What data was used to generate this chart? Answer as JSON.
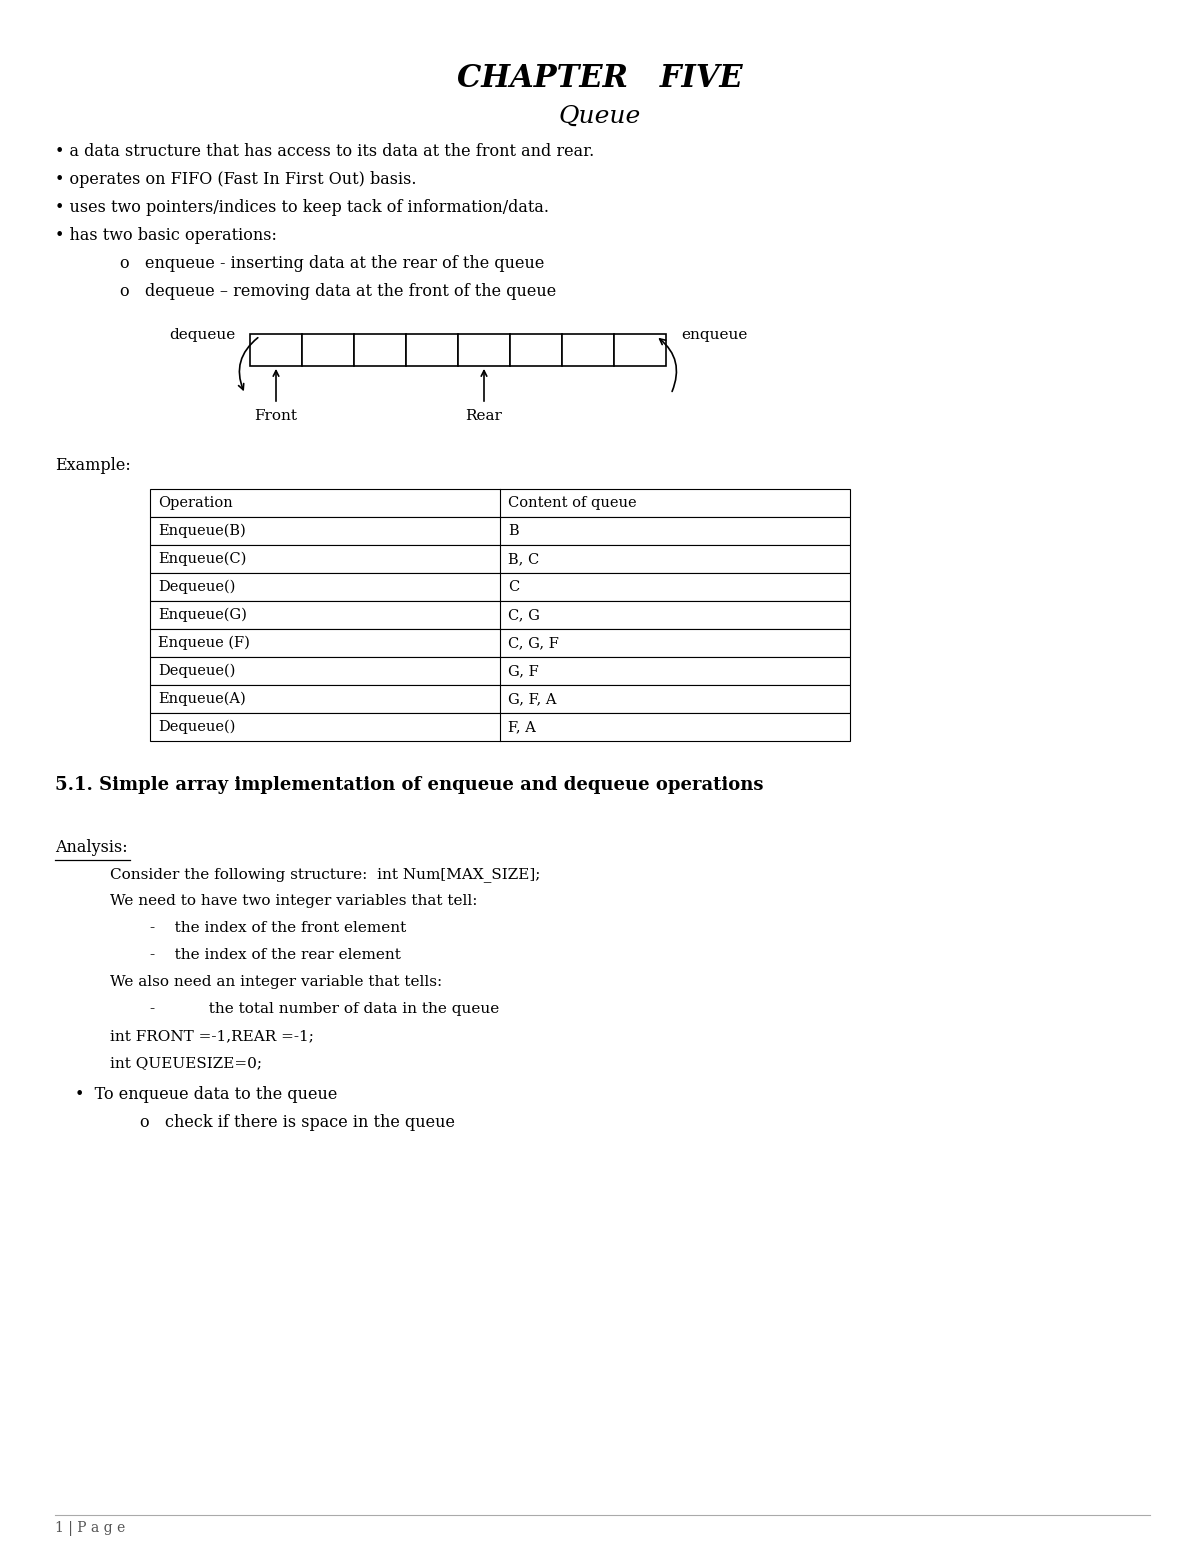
{
  "title": "CHAPTER   FIVE",
  "subtitle": "Queue",
  "bullet_points": [
    "a data structure that has access to its data at the front and rear.",
    "operates on FIFO (Fast In First Out) basis.",
    "uses two pointers/indices to keep tack of information/data.",
    "has two basic operations:"
  ],
  "sub_bullets": [
    "enqueue - inserting data at the rear of the queue",
    "dequeue – removing data at the front of the queue"
  ],
  "queue_diagram": {
    "num_cells": 8,
    "dequeue_label": "dequeue",
    "enqueue_label": "enqueue",
    "front_label": "Front",
    "rear_label": "Rear"
  },
  "example_label": "Example:",
  "table_headers": [
    "Operation",
    "Content of queue"
  ],
  "table_rows": [
    [
      "Enqueue(B)",
      "B"
    ],
    [
      "Enqueue(C)",
      "B, C"
    ],
    [
      "Dequeue()",
      "C"
    ],
    [
      "Enqueue(G)",
      "C, G"
    ],
    [
      "Enqueue (F)",
      "C, G, F"
    ],
    [
      "Dequeue()",
      "G, F"
    ],
    [
      "Enqueue(A)",
      "G, F, A"
    ],
    [
      "Dequeue()",
      "F, A"
    ]
  ],
  "section_title": "5.1. Simple array implementation of enqueue and dequeue operations",
  "analysis_label": "Analysis:",
  "analysis_text1": "Consider the following structure:  int Num[MAX_SIZE];",
  "analysis_text2": "We need to have two integer variables that tell:",
  "analysis_sub1": "the index of the front element",
  "analysis_sub2": "the index of the rear element",
  "analysis_text3": "We also need an integer variable that tells:",
  "analysis_sub3": "the total number of data in the queue",
  "analysis_text4": "int FRONT =-1,REAR =-1;",
  "analysis_text5": "int QUEUESIZE=0;",
  "bullet2": "To enqueue data to the queue",
  "sub_bullet2": "check if there is space in the queue",
  "footer": "1 | P a g e",
  "bg_color": "#ffffff",
  "text_color": "#000000"
}
